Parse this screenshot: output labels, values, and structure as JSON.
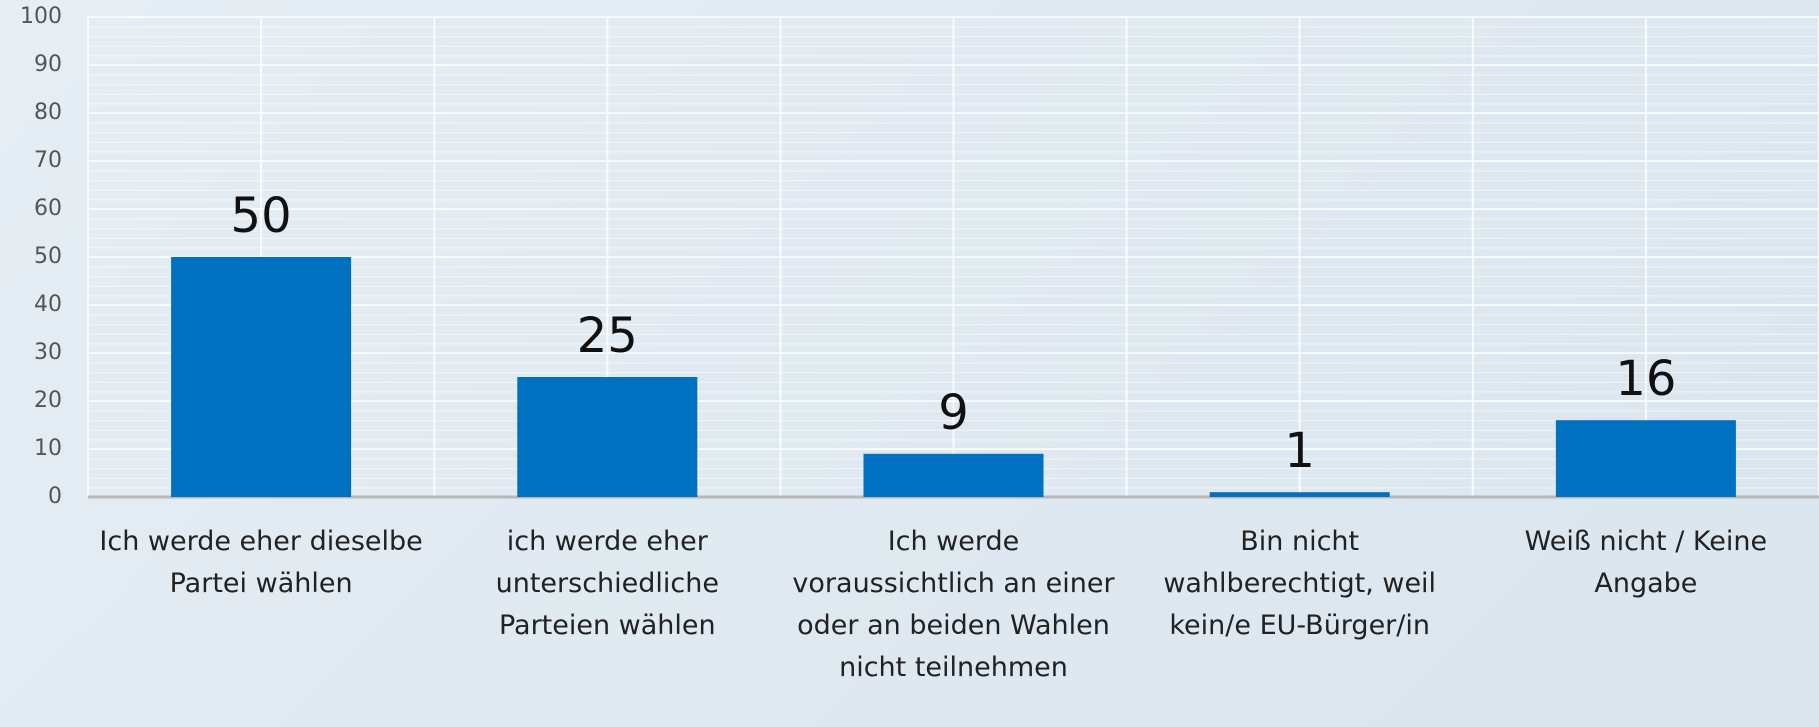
{
  "chart_data": {
    "type": "bar",
    "categories": [
      "Ich werde eher dieselbe Partei wählen",
      "ich werde eher unterschiedliche Parteien wählen",
      "Ich werde voraussichtlich an einer oder an beiden Wahlen nicht teilnehmen",
      "Bin nicht wahlberechtigt, weil kein/e EU-Bürger/in",
      "Weiß nicht / Keine Angabe"
    ],
    "values": [
      50,
      25,
      9,
      1,
      16
    ],
    "color": "#0070c0",
    "ylim": [
      0,
      100
    ],
    "yticks": [
      0,
      10,
      20,
      30,
      40,
      50,
      60,
      70,
      80,
      90,
      100
    ],
    "grid": true
  }
}
